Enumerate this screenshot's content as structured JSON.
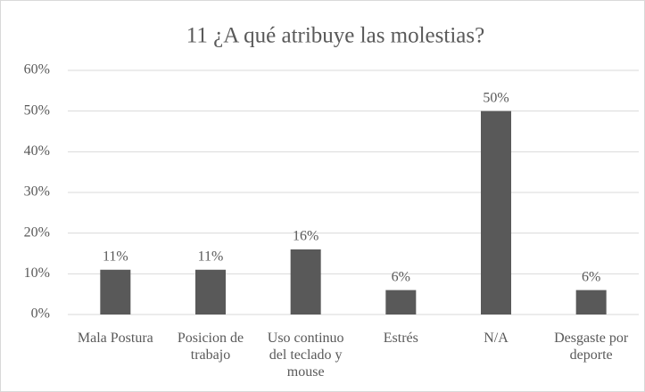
{
  "chart_data": {
    "type": "bar",
    "title": "11 ¿A qué atribuye las molestias?",
    "categories": [
      "Mala Postura",
      "Posicion de trabajo",
      "Uso continuo del teclado y mouse",
      "Estrés",
      "N/A",
      "Desgaste por deporte"
    ],
    "values": [
      11,
      11,
      16,
      6,
      50,
      6
    ],
    "value_labels": [
      "11%",
      "11%",
      "16%",
      "6%",
      "50%",
      "6%"
    ],
    "color": "#595959",
    "ylim": [
      0,
      60
    ],
    "yticks": [
      {
        "value": 0,
        "label": "0%"
      },
      {
        "value": 10,
        "label": "10%"
      },
      {
        "value": 20,
        "label": "20%"
      },
      {
        "value": 30,
        "label": "30%"
      },
      {
        "value": 40,
        "label": "40%"
      },
      {
        "value": 50,
        "label": "50%"
      },
      {
        "value": 60,
        "label": "60%"
      }
    ],
    "grid": true
  }
}
